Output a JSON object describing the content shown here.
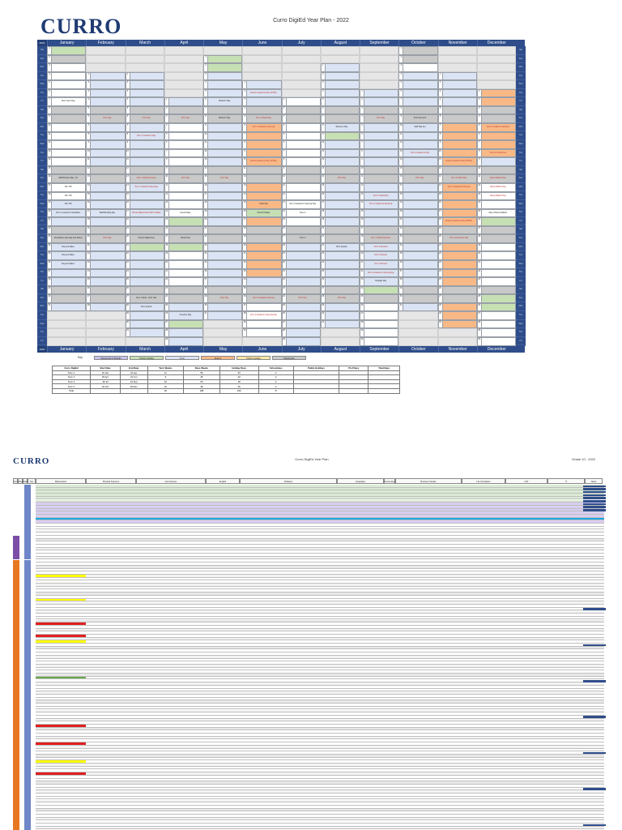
{
  "page1": {
    "logo_text": "CURRO",
    "title": "Curro DigiEd Year Plan - 2022",
    "corner_label": "2022",
    "months": [
      "January",
      "February",
      "March",
      "April",
      "May",
      "June",
      "July",
      "August",
      "September",
      "October",
      "November",
      "December"
    ],
    "weekdays": [
      "Mon",
      "Tue",
      "Wed",
      "Thu",
      "Fri",
      "Sat",
      "Sun"
    ],
    "events": [
      {
        "m": 3,
        "d": 6,
        "text": "Human Rights Weekend Day",
        "color": "red"
      },
      {
        "m": 5,
        "d": 6,
        "text": "Exams Academic Day (NOTE)",
        "color": "red"
      },
      {
        "m": 4,
        "d": 7,
        "text": "Workers' Day",
        "color": ""
      },
      {
        "m": 0,
        "d": 7,
        "text": "New Year's Day",
        "color": ""
      },
      {
        "m": 1,
        "d": 9,
        "text": "Prof. Day",
        "color": "red"
      },
      {
        "m": 2,
        "d": 9,
        "text": "Prof. Day",
        "color": "red"
      },
      {
        "m": 3,
        "d": 9,
        "text": "Prof. Day",
        "color": "red"
      },
      {
        "m": 4,
        "d": 9,
        "text": "Workers' Day",
        "color": ""
      },
      {
        "m": 5,
        "d": 9,
        "text": "Term 2 Starts Day",
        "color": "red"
      },
      {
        "m": 8,
        "d": 9,
        "text": "Prof. Day",
        "color": "red"
      },
      {
        "m": 9,
        "d": 9,
        "text": "Term Day Arch",
        "color": ""
      },
      {
        "m": 5,
        "d": 10,
        "text": "Term 2 Academic Opening",
        "color": "red"
      },
      {
        "m": 7,
        "d": 10,
        "text": "Women's Day",
        "color": ""
      },
      {
        "m": 9,
        "d": 10,
        "text": "Staff Day Set",
        "color": ""
      },
      {
        "m": 11,
        "d": 10,
        "text": "Term 4 Academic Reviews",
        "color": "red"
      },
      {
        "m": 2,
        "d": 11,
        "text": "Term 1 Academic Day",
        "color": "red"
      },
      {
        "m": 9,
        "d": 13,
        "text": "Term 4 Academic Day",
        "color": "red"
      },
      {
        "m": 11,
        "d": 13,
        "text": "Term 4 Conference",
        "color": "red"
      },
      {
        "m": 5,
        "d": 14,
        "text": "Exams Academic Day (NOTE)",
        "color": "red"
      },
      {
        "m": 10,
        "d": 14,
        "text": "Exams Academic Day (NOTE)",
        "color": "red"
      },
      {
        "m": 0,
        "d": 16,
        "text": "Staff Returns Day - Fri",
        "color": ""
      },
      {
        "m": 2,
        "d": 16,
        "text": "Term 1 Starts Reviews",
        "color": "red"
      },
      {
        "m": 3,
        "d": 16,
        "text": "Prof. Day",
        "color": "red"
      },
      {
        "m": 4,
        "d": 16,
        "text": "Prof. Day",
        "color": "red"
      },
      {
        "m": 7,
        "d": 16,
        "text": "Prof. Day",
        "color": "red"
      },
      {
        "m": 9,
        "d": 16,
        "text": "Prof. Day",
        "color": "red"
      },
      {
        "m": 10,
        "d": 16,
        "text": "Term 4 Starts Day",
        "color": "red"
      },
      {
        "m": 11,
        "d": 16,
        "text": "Reconciliation Day",
        "color": "red"
      },
      {
        "m": 0,
        "d": 17,
        "text": "Sch. PD",
        "color": ""
      },
      {
        "m": 2,
        "d": 17,
        "text": "Term 1 Academic Meetings",
        "color": "red"
      },
      {
        "m": 10,
        "d": 17,
        "text": "Term 4 Academic Reviews",
        "color": "red"
      },
      {
        "m": 11,
        "d": 17,
        "text": "Reconciliation Day",
        "color": "red"
      },
      {
        "m": 0,
        "d": 18,
        "text": "Sch. PD",
        "color": ""
      },
      {
        "m": 8,
        "d": 18,
        "text": "Term 3 Starts Day",
        "color": "red"
      },
      {
        "m": 11,
        "d": 18,
        "text": "Reconciliation Day",
        "color": "red"
      },
      {
        "m": 0,
        "d": 19,
        "text": "Sch. PD",
        "color": ""
      },
      {
        "m": 5,
        "d": 19,
        "text": "Youth Day",
        "color": ""
      },
      {
        "m": 6,
        "d": 19,
        "text": "Term 3 Academic Opening Day",
        "color": ""
      },
      {
        "m": 8,
        "d": 19,
        "text": "Term 3 Academic Meetings",
        "color": "red"
      },
      {
        "m": 0,
        "d": 20,
        "text": "Term 1 Learners' Orientation",
        "color": ""
      },
      {
        "m": 1,
        "d": 20,
        "text": "Staff Bonding Day",
        "color": ""
      },
      {
        "m": 2,
        "d": 20,
        "text": "Human Rights Day Public Holiday",
        "color": "red"
      },
      {
        "m": 3,
        "d": 20,
        "text": "Good Friday",
        "color": ""
      },
      {
        "m": 5,
        "d": 20,
        "text": "School Holiday",
        "color": ""
      },
      {
        "m": 6,
        "d": 20,
        "text": "Term 3",
        "color": ""
      },
      {
        "m": 11,
        "d": 20,
        "text": "Day of Reconciliation",
        "color": ""
      },
      {
        "m": 10,
        "d": 21,
        "text": "Exams Academic Day (NOTE)",
        "color": "red"
      },
      {
        "m": 0,
        "d": 23,
        "text": "Attendance start (day and dates)",
        "color": ""
      },
      {
        "m": 1,
        "d": 23,
        "text": "Prof. Day",
        "color": "red"
      },
      {
        "m": 2,
        "d": 23,
        "text": "Human Rights Day",
        "color": ""
      },
      {
        "m": 3,
        "d": 23,
        "text": "Family Day",
        "color": ""
      },
      {
        "m": 6,
        "d": 23,
        "text": "Term 3",
        "color": ""
      },
      {
        "m": 8,
        "d": 23,
        "text": "Term 3 Starts Reviews",
        "color": "red"
      },
      {
        "m": 10,
        "d": 23,
        "text": "Prof. Conference Day",
        "color": "red"
      },
      {
        "m": 0,
        "d": 24,
        "text": "Day and dates",
        "color": ""
      },
      {
        "m": 7,
        "d": 24,
        "text": "Term Quarter",
        "color": ""
      },
      {
        "m": 8,
        "d": 24,
        "text": "Term 3 Reviews",
        "color": "red"
      },
      {
        "m": 0,
        "d": 25,
        "text": "Day and dates",
        "color": ""
      },
      {
        "m": 8,
        "d": 25,
        "text": "Term 3 Review",
        "color": "red"
      },
      {
        "m": 0,
        "d": 26,
        "text": "Day and dates",
        "color": ""
      },
      {
        "m": 8,
        "d": 26,
        "text": "Term 3 Review",
        "color": "red"
      },
      {
        "m": 8,
        "d": 27,
        "text": "Term 3 Academic Opening Day",
        "color": "red"
      },
      {
        "m": 8,
        "d": 28,
        "text": "Heritage Day",
        "color": ""
      },
      {
        "m": 2,
        "d": 30,
        "text": "Term 1 Ends - Prof. Day",
        "color": ""
      },
      {
        "m": 4,
        "d": 30,
        "text": "Prof. Day",
        "color": "red"
      },
      {
        "m": 5,
        "d": 30,
        "text": "Term 2 Academic Review",
        "color": "red"
      },
      {
        "m": 6,
        "d": 30,
        "text": "Prof. Day",
        "color": "red"
      },
      {
        "m": 7,
        "d": 30,
        "text": "Prof. Day",
        "color": "red"
      },
      {
        "m": 2,
        "d": 31,
        "text": "Term Quarter",
        "color": ""
      },
      {
        "m": 5,
        "d": 32,
        "text": "Term 2 Academic Opening Day",
        "color": "red"
      },
      {
        "m": 3,
        "d": 32,
        "text": "Freedom Day",
        "color": ""
      }
    ],
    "key_label": "Key",
    "key": [
      {
        "label": "Weekends & Breaks",
        "color": "#c9c3ea"
      },
      {
        "label": "Public Holiday",
        "color": "#c6e0b4"
      },
      {
        "label": "Term",
        "color": "#dbe4f4"
      },
      {
        "label": "Exams",
        "color": "#f8b987"
      },
      {
        "label": "Public Holiday",
        "color": "#fde9a9"
      },
      {
        "label": "Weekends",
        "color": "#c9c9c9"
      }
    ],
    "summary": {
      "headers": [
        "Curro DigiEd",
        "Start Date",
        "End Date",
        "Term Weeks",
        "Days Weeks",
        "Holiday Days",
        "Schooldays",
        "Public Holidays",
        "Prof Days",
        "Total Days"
      ],
      "rows": [
        [
          "Term 1",
          "19 Jan",
          "01 Apr",
          "11",
          "55",
          "53",
          "2",
          "",
          "",
          ""
        ],
        [
          "Term 2",
          "25 Apr",
          "24 Jun",
          "9",
          "45",
          "43",
          "2",
          "",
          "",
          ""
        ],
        [
          "Term 3",
          "18 Jul",
          "23 Sep",
          "10",
          "50",
          "48",
          "2",
          "",
          "",
          ""
        ],
        [
          "Term 4",
          "04 Oct",
          "09 Dec",
          "10",
          "48",
          "46",
          "2",
          "",
          "",
          ""
        ],
        [
          "Total",
          "",
          "",
          "40",
          "198",
          "190",
          "8",
          "",
          "",
          ""
        ]
      ]
    }
  },
  "page2": {
    "logo_text": "CURRO",
    "title": "Curro DigiEd Year Plan",
    "grade": "Grade 10 - 2022",
    "columns": [
      "Term",
      "Week",
      "Date",
      "Day",
      "Mathematics",
      "Physical Sciences",
      "Life Sciences",
      "English",
      "Afrikaans",
      "Geography",
      "Accounting",
      "Business Studies",
      "Life Orientation",
      "CAT",
      "IT",
      "Notes"
    ]
  }
}
